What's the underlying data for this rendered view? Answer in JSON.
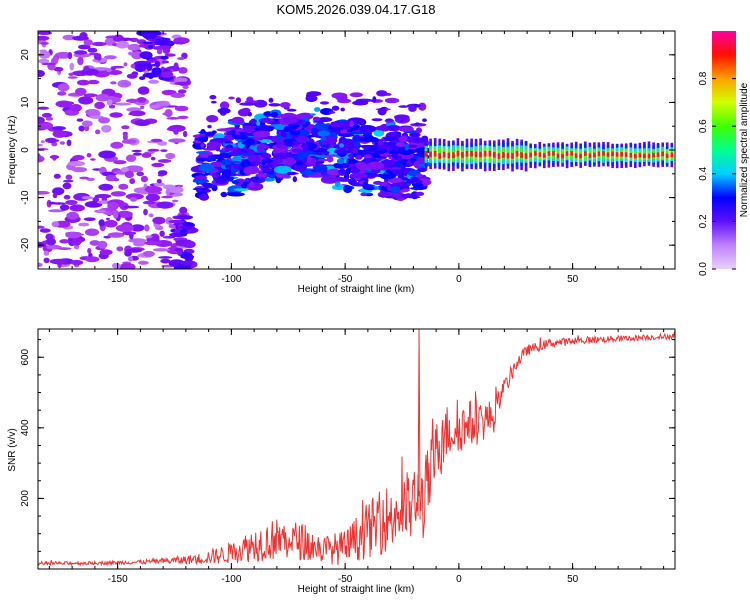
{
  "title": "KOM5.2026.039.04.17.G18",
  "chart_data": [
    {
      "type": "heatmap",
      "xlabel": "Height of straight line (km)",
      "ylabel": "Frequency (Hz)",
      "xlim": [
        -185,
        95
      ],
      "ylim": [
        -25,
        25
      ],
      "xticks": [
        -150,
        -100,
        -50,
        0,
        50
      ],
      "yticks": [
        -20,
        -10,
        0,
        10,
        20
      ],
      "colorbar": {
        "label": "Normalized spectral amplitude",
        "range": [
          0,
          1
        ],
        "ticks": [
          0.0,
          0.2,
          0.4,
          0.6,
          0.8
        ],
        "colors": [
          "#d9b3ff",
          "#a020f0",
          "#4a00ff",
          "#0000ff",
          "#00c8ff",
          "#00ff80",
          "#40ff00",
          "#ffff00",
          "#ff8000",
          "#ff0000",
          "#ff00a0"
        ]
      },
      "features": [
        {
          "name": "scattered noise",
          "x_range": [
            -185,
            -120
          ],
          "freq_range": [
            -25,
            25
          ],
          "amplitude": 0.08
        },
        {
          "name": "drifting band upper",
          "x_range": [
            -140,
            -128
          ],
          "freq_range": [
            15,
            25
          ],
          "amplitude": 0.15
        },
        {
          "name": "drifting band lower",
          "x_range": [
            -125,
            -118
          ],
          "freq_range": [
            -25,
            -14
          ],
          "amplitude": 0.15
        },
        {
          "name": "broad cluster",
          "x_range": [
            -115,
            -15
          ],
          "freq_range": [
            -6,
            8
          ],
          "amplitude": 0.25
        },
        {
          "name": "carrier line",
          "x_range": [
            -15,
            95
          ],
          "freq_range": [
            -2,
            0
          ],
          "amplitude": 0.9
        }
      ]
    },
    {
      "type": "line",
      "xlabel": "Height of straight line (km)",
      "ylabel": "SNR (v/v)",
      "xlim": [
        -185,
        95
      ],
      "ylim": [
        0,
        680
      ],
      "xticks": [
        -150,
        -100,
        -50,
        0,
        50
      ],
      "yticks": [
        200,
        400,
        600
      ],
      "color": "#ee3333",
      "profile": {
        "x": [
          -185,
          -150,
          -130,
          -115,
          -100,
          -90,
          -80,
          -70,
          -60,
          -50,
          -40,
          -30,
          -20,
          -15,
          -10,
          -5,
          0,
          5,
          10,
          15,
          20,
          25,
          30,
          40,
          60,
          80,
          95
        ],
        "y": [
          15,
          18,
          22,
          28,
          45,
          70,
          85,
          80,
          55,
          60,
          110,
          150,
          180,
          200,
          330,
          390,
          400,
          410,
          420,
          430,
          510,
          580,
          620,
          640,
          650,
          655,
          660
        ],
        "spread": [
          5,
          5,
          8,
          15,
          30,
          50,
          60,
          55,
          40,
          50,
          80,
          100,
          110,
          120,
          90,
          80,
          70,
          70,
          60,
          50,
          30,
          20,
          15,
          12,
          10,
          8,
          8
        ]
      }
    }
  ]
}
